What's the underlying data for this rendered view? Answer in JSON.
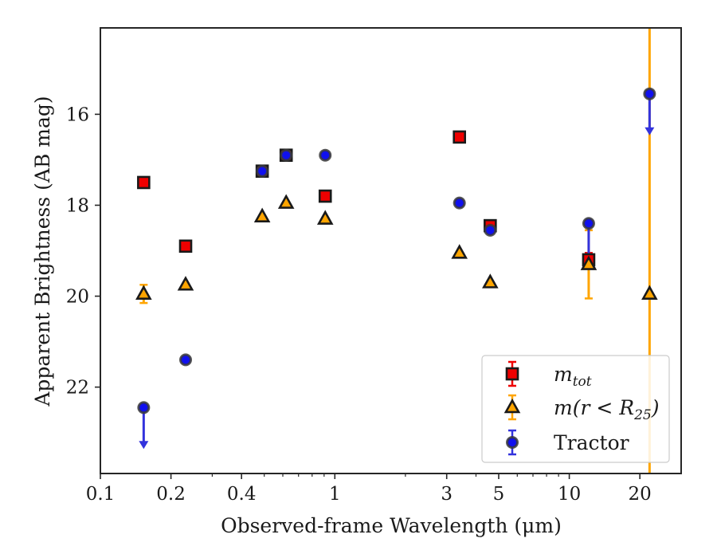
{
  "chart_data": {
    "type": "scatter",
    "xlabel": "Observed-frame Wavelength (μm)",
    "ylabel": "Apparent Brightness (AB mag)",
    "xscale": "log",
    "yinverted": true,
    "xlim": [
      0.1,
      30
    ],
    "ylim": [
      14.1,
      23.9
    ],
    "xticks": [
      0.1,
      0.2,
      0.4,
      1,
      3,
      5,
      10,
      20
    ],
    "xtick_labels": [
      "0.1",
      "0.2",
      "0.4",
      "1",
      "3",
      "5",
      "10",
      "20"
    ],
    "yticks": [
      16,
      18,
      20,
      22
    ],
    "ytick_labels": [
      "16",
      "18",
      "20",
      "22"
    ],
    "legend": {
      "position": "lower-right",
      "entries": [
        {
          "label": "m",
          "label_sub": "tot"
        },
        {
          "label": "m(r < R",
          "label_sub": "25",
          "label_suffix": ")"
        },
        {
          "label": "Tractor"
        }
      ]
    },
    "series": [
      {
        "name": "m_tot",
        "marker": "square",
        "color": "#ee0000",
        "errorbar_color": "#ee0000",
        "points": [
          {
            "x": 0.153,
            "y": 17.5
          },
          {
            "x": 0.231,
            "y": 18.9
          },
          {
            "x": 0.49,
            "y": 17.25
          },
          {
            "x": 0.62,
            "y": 16.9
          },
          {
            "x": 0.91,
            "y": 17.8
          },
          {
            "x": 3.4,
            "y": 16.5
          },
          {
            "x": 4.6,
            "y": 18.45
          },
          {
            "x": 12.1,
            "y": 19.2,
            "err": 0.15
          }
        ]
      },
      {
        "name": "m(r<R25)",
        "marker": "triangle",
        "color": "#ffa500",
        "errorbar_color": "#ffa500",
        "points": [
          {
            "x": 0.153,
            "y": 19.95,
            "err": 0.2
          },
          {
            "x": 0.231,
            "y": 19.75
          },
          {
            "x": 0.49,
            "y": 18.25
          },
          {
            "x": 0.62,
            "y": 17.95
          },
          {
            "x": 0.91,
            "y": 18.3
          },
          {
            "x": 3.4,
            "y": 19.05
          },
          {
            "x": 4.6,
            "y": 19.7
          },
          {
            "x": 12.1,
            "y": 19.3,
            "err": 0.75
          },
          {
            "x": 22.0,
            "y": 19.95,
            "err": 100
          }
        ]
      },
      {
        "name": "Tractor",
        "marker": "circle",
        "color": "#1010ee",
        "errorbar_color": "#3333dd",
        "points": [
          {
            "x": 0.153,
            "y": 22.45,
            "upper_limit": true
          },
          {
            "x": 0.231,
            "y": 21.4
          },
          {
            "x": 0.49,
            "y": 17.25
          },
          {
            "x": 0.62,
            "y": 16.9
          },
          {
            "x": 0.91,
            "y": 16.9
          },
          {
            "x": 3.4,
            "y": 17.95
          },
          {
            "x": 4.6,
            "y": 18.55
          },
          {
            "x": 12.1,
            "y": 18.4,
            "err_up": 0,
            "err_down": 0.85
          },
          {
            "x": 22.0,
            "y": 15.55,
            "upper_limit": true
          }
        ]
      }
    ]
  }
}
